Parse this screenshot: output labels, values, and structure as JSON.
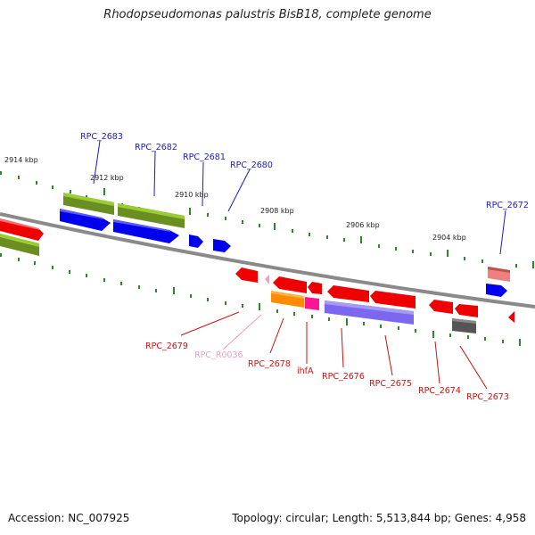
{
  "title": "Rhodopseudomonas palustris BisB18, complete genome",
  "footer": {
    "accession": "Accession: NC_007925",
    "summary": "Topology: circular; Length: 5,513,844 bp; Genes: 4,958"
  },
  "ticks": [
    "2914 kbp",
    "2912 kbp",
    "2910 kbp",
    "2908 kbp",
    "2906 kbp",
    "2904 kbp"
  ],
  "labels": {
    "RPC_2683": "RPC_2683",
    "RPC_2682": "RPC_2682",
    "RPC_2681": "RPC_2681",
    "RPC_2680": "RPC_2680",
    "RPC_2672": "RPC_2672",
    "RPC_2679": "RPC_2679",
    "RPC_R0036": "RPC_R0036",
    "RPC_2678": "RPC_2678",
    "ihfA": "ihfA",
    "RPC_2676": "RPC_2676",
    "RPC_2675": "RPC_2675",
    "RPC_2674": "RPC_2674",
    "RPC_2673": "RPC_2673"
  },
  "colors": {
    "plus_label": "#1a1acc",
    "minus_label": "#cc1111",
    "rna_label": "#f09cc4",
    "backbone": "#8a8a8a",
    "tick_dot": "#2a8a2a",
    "gene_red": "#ee0000",
    "gene_blue": "#0000ee",
    "gene_olive": "#6b8e23",
    "gene_orange": "#ff8c00",
    "gene_magenta": "#ff1493",
    "gene_purple": "#7b68ee",
    "gene_pink": "#f08080",
    "gene_gray": "#555555"
  }
}
